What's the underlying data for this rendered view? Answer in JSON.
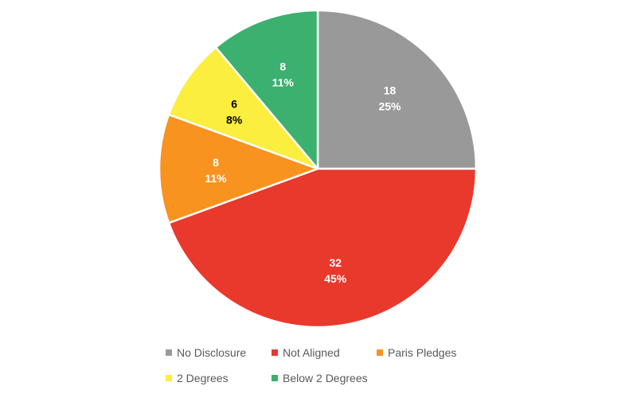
{
  "chart_data": {
    "type": "pie",
    "title": "",
    "legend_position": "bottom",
    "slices": [
      {
        "name": "No Disclosure",
        "value": 18,
        "percent": "25%",
        "color": "#999999",
        "label_color": "#ffffff"
      },
      {
        "name": "Not Aligned",
        "value": 32,
        "percent": "45%",
        "color": "#e8392c",
        "label_color": "#ffffff"
      },
      {
        "name": "Paris Pledges",
        "value": 8,
        "percent": "11%",
        "color": "#f7931e",
        "label_color": "#ffffff"
      },
      {
        "name": "2 Degrees",
        "value": 6,
        "percent": "8%",
        "color": "#fcee3f",
        "label_color": "#000000"
      },
      {
        "name": "Below 2 Degrees",
        "value": 8,
        "percent": "11%",
        "color": "#3bb06f",
        "label_color": "#ffffff"
      }
    ]
  }
}
